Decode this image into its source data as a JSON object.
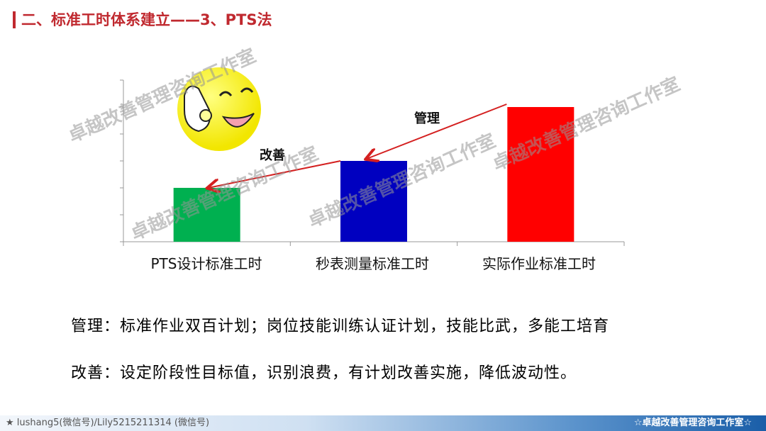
{
  "title": "二、标准工时体系建立——3、PTS法",
  "chart_data": {
    "type": "bar",
    "categories": [
      "PTS设计标准工时",
      "秒表测量标准工时",
      "实际作业标准工时"
    ],
    "values": [
      2,
      3,
      5
    ],
    "colors": [
      "#00b050",
      "#0000c0",
      "#ff0000"
    ],
    "ylim": [
      0,
      6
    ],
    "grid": false,
    "annotations": [
      {
        "text": "改善",
        "from": "秒表测量标准工时",
        "to": "PTS设计标准工时"
      },
      {
        "text": "管理",
        "from": "实际作业标准工时",
        "to": "秒表测量标准工时"
      }
    ],
    "arrow_color": "#d42020"
  },
  "icon": "ok-smiley-icon",
  "lines": {
    "management": "管理：标准作业双百计划；岗位技能训练认证计划，技能比武，多能工培育",
    "improvement": "改善：设定阶段性目标值，识别浪费，有计划改善实施，降低波动性。"
  },
  "watermark": "卓越改善管理咨询工作室",
  "footer": {
    "left": "★ lushang5(微信号)/Lily5215211314 (微信号)",
    "right": "☆卓越改善管理咨询工作室☆"
  }
}
